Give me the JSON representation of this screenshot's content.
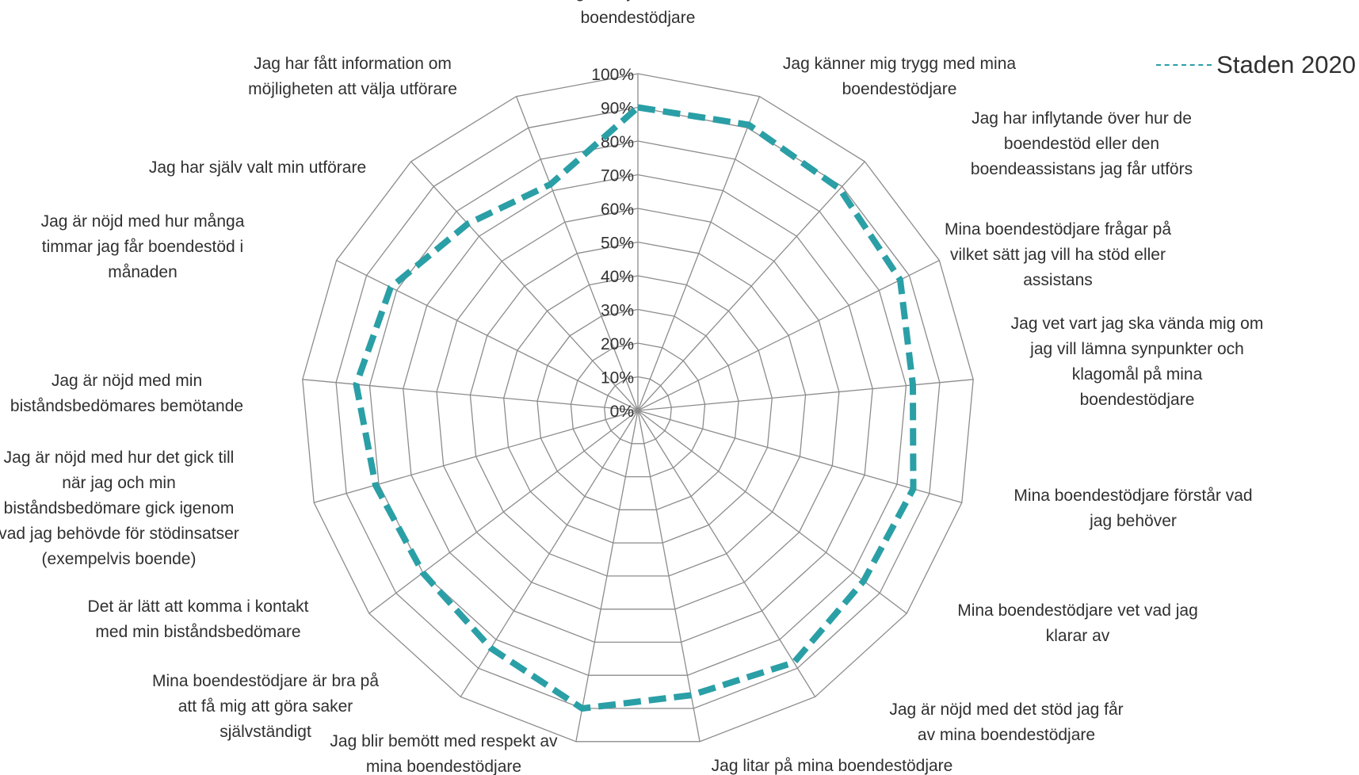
{
  "chart_data": {
    "type": "radar",
    "title": "",
    "categories": [
      "Jag är nöjd med mina boendestödjare",
      "Jag känner mig trygg med mina boendestödjare",
      "Jag har inflytande över hur de boendestöd eller den boendeassistans jag får utförs",
      "Mina boendestödjare frågar på vilket sätt jag vill ha stöd eller assistans",
      "Jag vet vart jag ska vända mig om jag vill lämna synpunkter och klagomål på mina boendestödjare",
      "Mina boendestödjare förstår vad jag behöver",
      "Mina boendestödjare vet vad jag klarar av",
      "Jag är nöjd med det stöd jag får av mina boendestödjare",
      "Jag litar på mina boendestödjare",
      "Jag blir bemött med respekt av mina boendestödjare",
      "Mina boendestödjare är bra på att få mig att göra saker självständigt",
      "Det är lätt att komma i kontakt med min biståndsbedömare",
      "Jag är nöjd med hur det gick till när jag och min biståndsbedömare gick igenom vad jag behövde för stödinsatser (exempelvis boende)",
      "Jag är nöjd med min biståndsbedömares bemötande",
      "Jag är nöjd med hur många timmar jag får boendestöd i månaden",
      "Jag har själv valt min utförare",
      "Jag har fått information om möjligheten att välja utförare"
    ],
    "category_lines": [
      [
        "Jag är nöjd med mina",
        "boendestödjare"
      ],
      [
        "Jag känner mig trygg med mina",
        "boendestödjare"
      ],
      [
        "Jag har inflytande över hur de",
        "boendestöd eller den",
        "boendeassistans jag får utförs"
      ],
      [
        "Mina boendestödjare frågar på",
        "vilket sätt jag vill ha stöd eller",
        "assistans"
      ],
      [
        "Jag vet vart jag ska vända mig om",
        "jag vill lämna synpunkter och",
        "klagomål på mina",
        "boendestödjare"
      ],
      [
        "Mina boendestödjare förstår vad",
        "jag behöver"
      ],
      [
        "Mina boendestödjare vet vad jag",
        "klarar av"
      ],
      [
        "Jag är nöjd med det stöd jag får",
        "av mina boendestödjare"
      ],
      [
        "Jag litar på mina boendestödjare"
      ],
      [
        "Jag blir bemött med respekt av",
        "mina boendestödjare"
      ],
      [
        "Mina boendestödjare är bra på",
        "att få mig att göra saker",
        "självständigt"
      ],
      [
        "Det är lätt att komma i kontakt",
        "med min biståndsbedömare"
      ],
      [
        "Jag är nöjd med hur det gick till",
        "när jag och min",
        "biståndsbedömare gick igenom",
        "vad jag behövde för stödinsatser",
        "(exempelvis boende)"
      ],
      [
        "Jag är nöjd med min",
        "biståndsbedömares bemötande"
      ],
      [
        "Jag är nöjd med hur många",
        "timmar jag får boendestöd i",
        "månaden"
      ],
      [
        "Jag har själv valt min utförare"
      ],
      [
        "Jag har fått information om",
        "möjligheten att välja utförare"
      ]
    ],
    "series": [
      {
        "name": "Staden 2020",
        "color": "#2a9fa6",
        "line_style": "dashed",
        "values": [
          90,
          91,
          89,
          87,
          82,
          85,
          84,
          88,
          86,
          90,
          83,
          80,
          81,
          84,
          82,
          75,
          72
        ]
      }
    ],
    "ylim": [
      0,
      100
    ],
    "tick_labels": [
      "0%",
      "10%",
      "20%",
      "30%",
      "40%",
      "50%",
      "60%",
      "70%",
      "80%",
      "90%",
      "100%"
    ],
    "grid": true,
    "legend_position": "top-right"
  }
}
